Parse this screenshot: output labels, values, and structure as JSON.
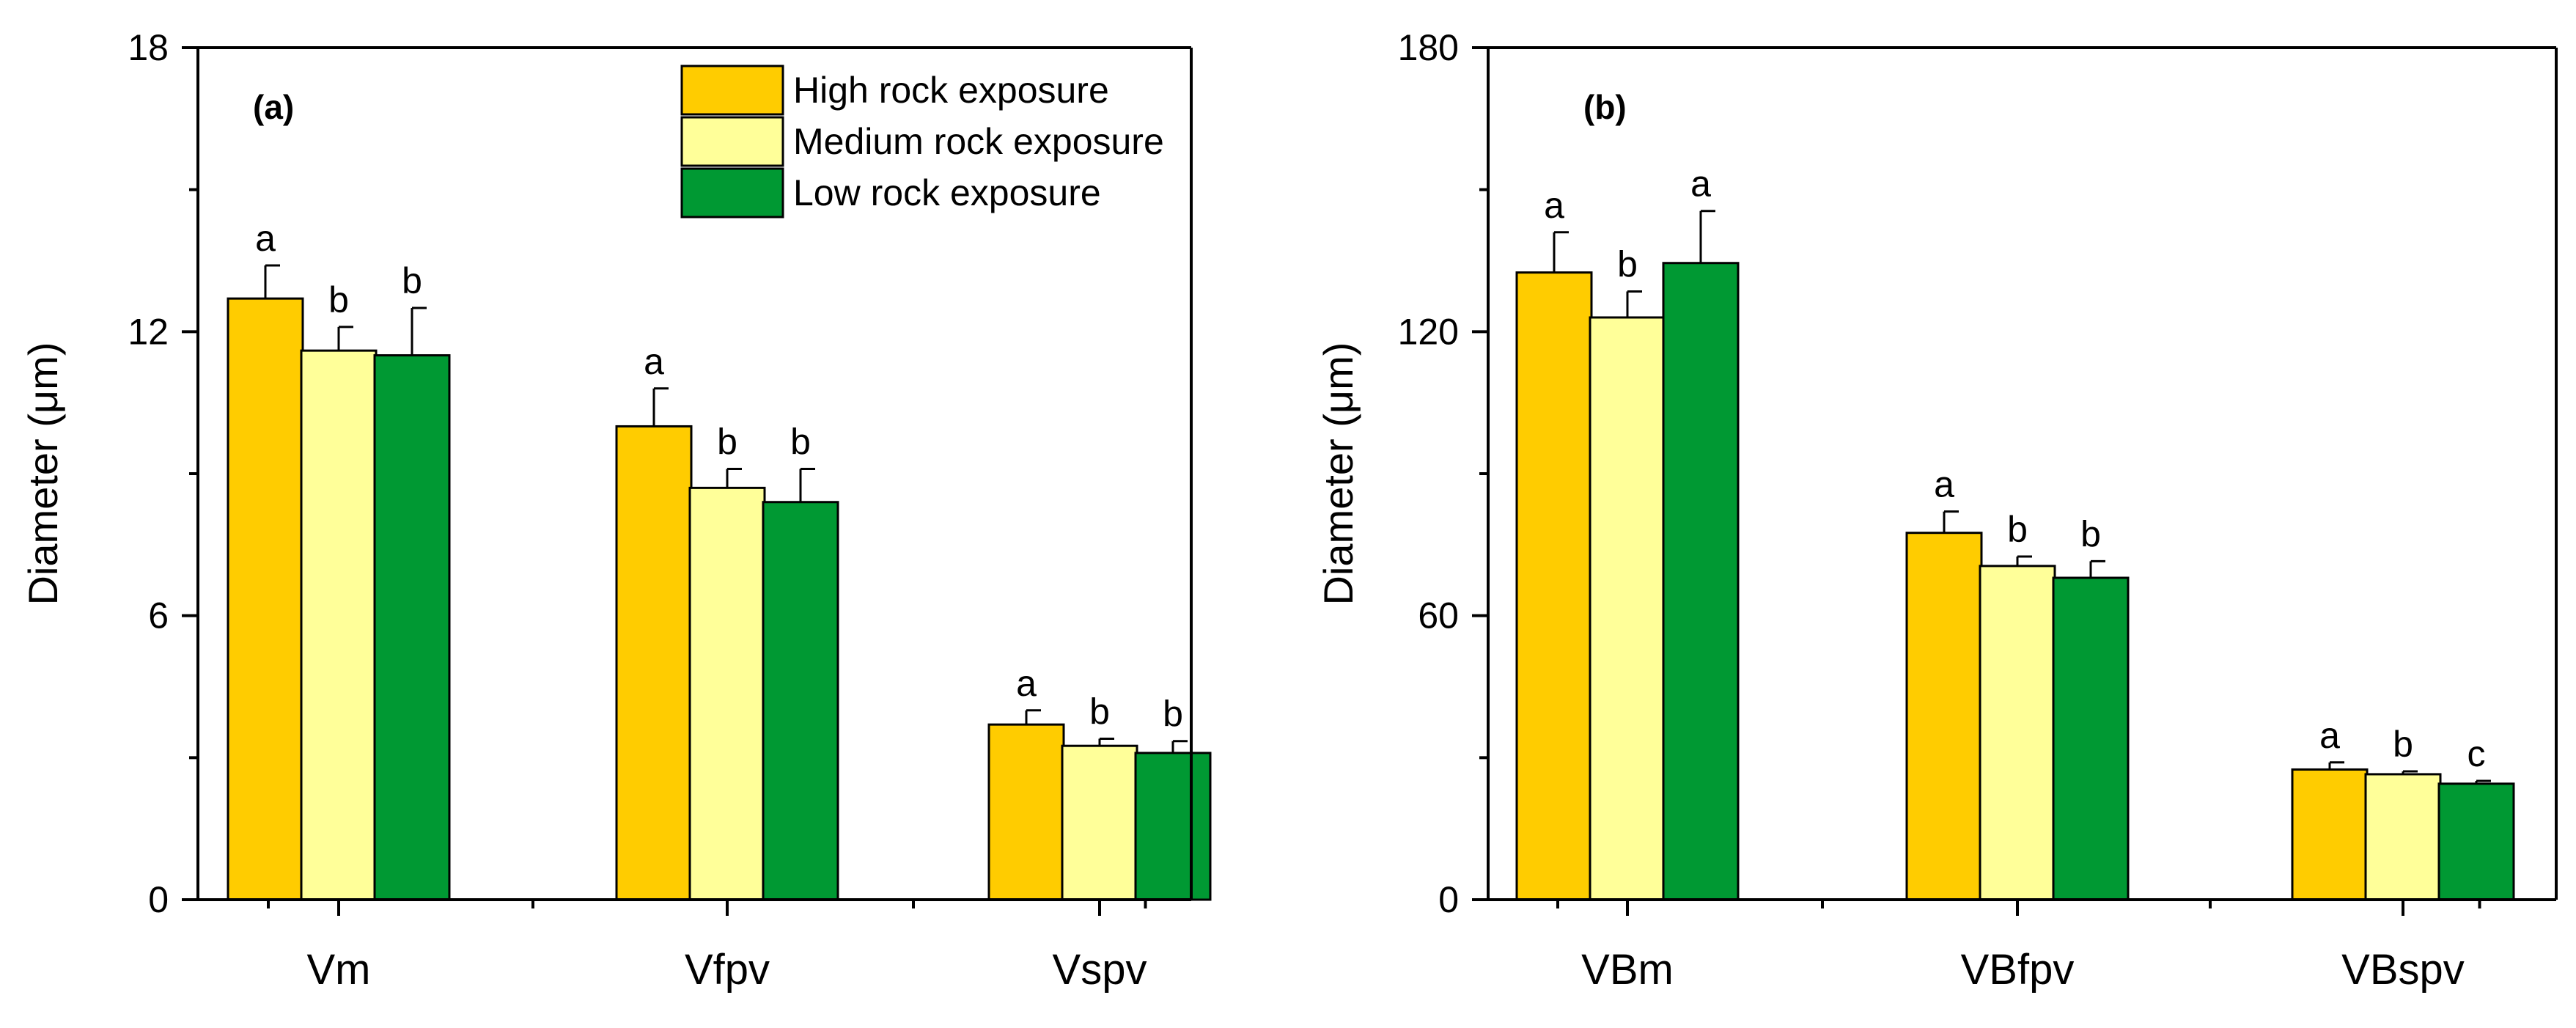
{
  "chart_data": [
    {
      "panel": "(a)",
      "type": "bar",
      "ylabel": "Diameter (μm)",
      "xlabel": "",
      "ylim": [
        0,
        18
      ],
      "yticks": [
        0,
        6,
        12,
        18
      ],
      "categories": [
        "Vm",
        "Vfpv",
        "Vspv"
      ],
      "series": [
        {
          "name": "High rock exposure",
          "color": "#FFCC00",
          "values": [
            12.7,
            10.0,
            3.7
          ],
          "errors": [
            0.7,
            0.8,
            0.3
          ],
          "letters": [
            "a",
            "a",
            "a"
          ]
        },
        {
          "name": "Medium rock exposure",
          "color": "#FFFF99",
          "values": [
            11.6,
            8.7,
            3.25
          ],
          "errors": [
            0.5,
            0.4,
            0.15
          ],
          "letters": [
            "b",
            "b",
            "b"
          ]
        },
        {
          "name": "Low rock exposure",
          "color": "#009933",
          "values": [
            11.5,
            8.4,
            3.1
          ],
          "errors": [
            1.0,
            0.7,
            0.25
          ],
          "letters": [
            "b",
            "b",
            "b"
          ]
        }
      ],
      "legend": "top-right"
    },
    {
      "panel": "(b)",
      "type": "bar",
      "ylabel": "Diameter (μm)",
      "xlabel": "",
      "ylim": [
        0,
        180
      ],
      "yticks": [
        0,
        60,
        120,
        180
      ],
      "categories": [
        "VBm",
        "VBfpv",
        "VBspv"
      ],
      "series": [
        {
          "name": "High rock exposure",
          "color": "#FFCC00",
          "values": [
            132.5,
            77.5,
            27.5
          ],
          "errors": [
            8.5,
            4.5,
            1.5
          ],
          "letters": [
            "a",
            "a",
            "a"
          ]
        },
        {
          "name": "Medium rock exposure",
          "color": "#FFFF99",
          "values": [
            123.0,
            70.5,
            26.5
          ],
          "errors": [
            5.5,
            2.0,
            0.6
          ],
          "letters": [
            "b",
            "b",
            "b"
          ]
        },
        {
          "name": "Low rock exposure",
          "color": "#009933",
          "values": [
            134.5,
            68.0,
            24.5
          ],
          "errors": [
            11.0,
            3.5,
            0.6
          ],
          "letters": [
            "a",
            "b",
            "c"
          ]
        }
      ]
    }
  ]
}
